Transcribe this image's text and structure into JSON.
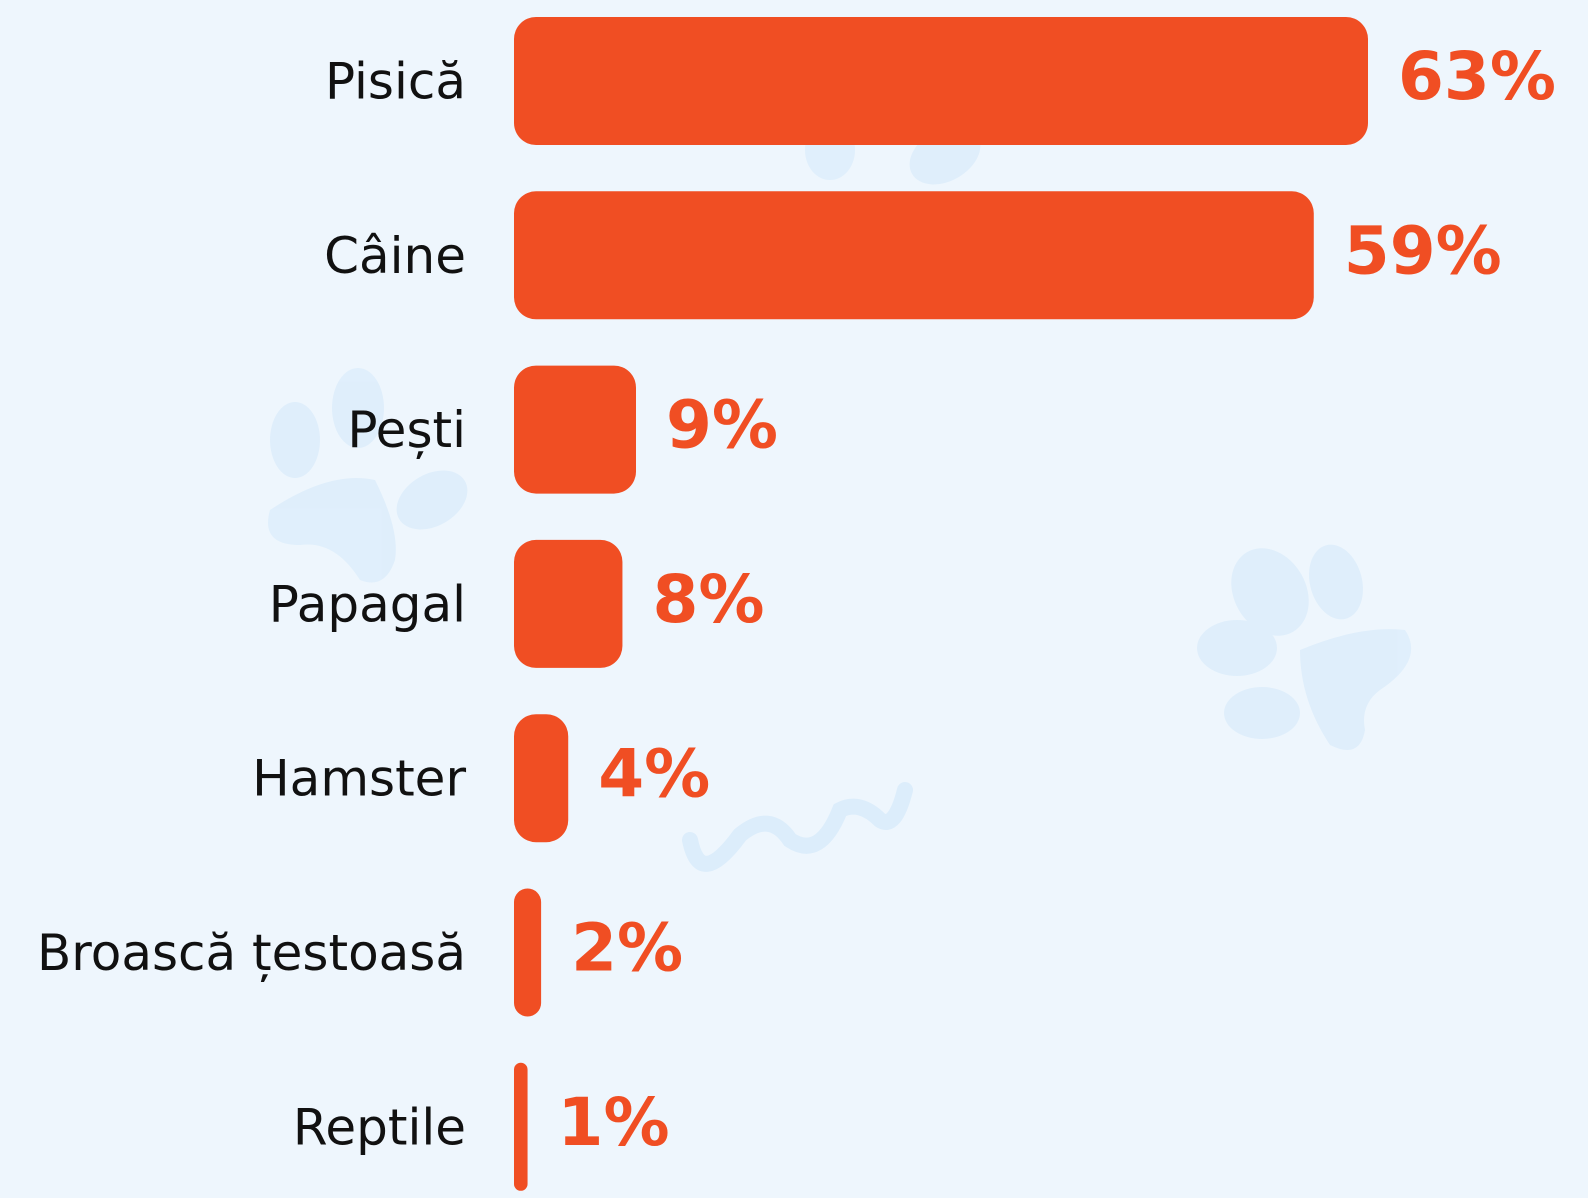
{
  "chart_data": {
    "type": "bar",
    "orientation": "horizontal",
    "categories": [
      "Pisică",
      "Câine",
      "Pești",
      "Papagal",
      "Hamster",
      "Broască țestoasă",
      "Reptile"
    ],
    "values": [
      63,
      59,
      9,
      8,
      4,
      2,
      1
    ],
    "value_labels": [
      "63%",
      "59%",
      "9%",
      "8%",
      "4%",
      "2%",
      "1%"
    ],
    "color": "#f04e23"
  }
}
